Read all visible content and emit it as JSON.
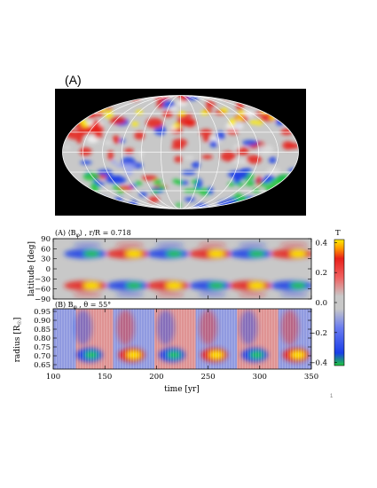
{
  "figure_label": "(A)",
  "panel_a": {
    "title": "(A) ⟨B",
    "title_sub": "φ",
    "title_rest": "⟩ , r/R = 0.718",
    "ylabel": "latitude [deg]",
    "yticks": [
      "90",
      "60",
      "30",
      "0",
      "−30",
      "−60",
      "−90"
    ]
  },
  "panel_b": {
    "title": "(B) B",
    "title_sub": "φ",
    "title_rest": " , θ = 55°",
    "ylabel": "radius [R",
    "ylabel_sub": "☉",
    "ylabel_end": "]",
    "yticks": [
      "0.95",
      "0.90",
      "0.85",
      "0.80",
      "0.75",
      "0.70",
      "0.65"
    ]
  },
  "xaxis": {
    "label": "time [yr]",
    "ticks": [
      "100",
      "150",
      "200",
      "250",
      "300",
      "350"
    ]
  },
  "colorbar": {
    "unit": "T",
    "ticks": [
      "0.4",
      "0.2",
      "0.0",
      "−0.2",
      "−0.4"
    ]
  },
  "page_number": "1",
  "colors": {
    "positive": "#e8201a",
    "positive_peak": "#ffee00",
    "negative": "#1a3ee8",
    "negative_peak": "#1ec83c",
    "neutral": "#c8c8c8"
  }
}
